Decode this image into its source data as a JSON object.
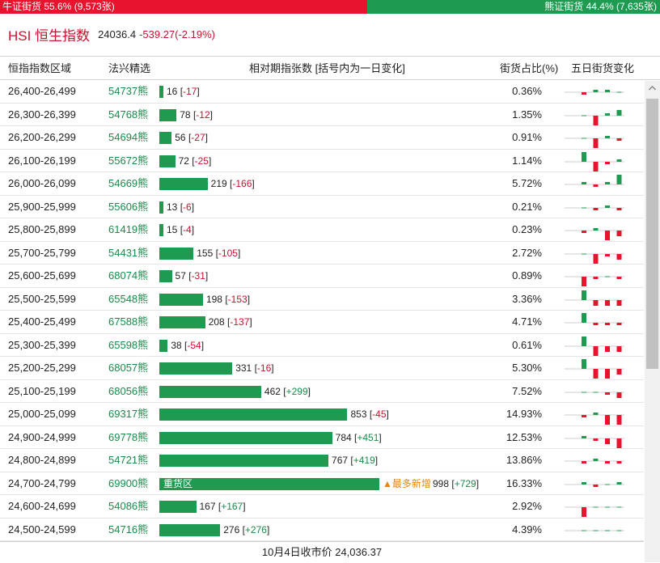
{
  "ratio_bar": {
    "bull_label": "牛证街货 55.6% (9,573张)",
    "bear_label": "熊证街货 44.4% (7,635张)",
    "bull_fraction": 0.556,
    "bear_fraction": 0.444,
    "bull_color": "#e8142e",
    "bear_color": "#1e9b50"
  },
  "index": {
    "name": "HSI 恒生指数",
    "value": "24036.4",
    "change": "-539.27(-2.19%)"
  },
  "columns": {
    "range": "恒指指数区域",
    "code": "法兴精选",
    "change": "相对期指张数 [括号内为一日变化]",
    "pct": "街货占比(%)",
    "five_day": "五日街货变化"
  },
  "rows": [
    {
      "range": "26,400-26,499",
      "code": "54737熊",
      "qty": 16,
      "qty_label": "16",
      "delta": "-17",
      "pct": "0.36%",
      "spark": [
        -1,
        1,
        1,
        0,
        -3
      ]
    },
    {
      "range": "26,300-26,399",
      "code": "54768熊",
      "qty": 78,
      "qty_label": "78",
      "delta": "-12",
      "pct": "1.35%",
      "spark": [
        0,
        -3,
        1,
        2,
        -3
      ]
    },
    {
      "range": "26,200-26,299",
      "code": "54694熊",
      "qty": 56,
      "qty_label": "56",
      "delta": "-27",
      "pct": "0.91%",
      "spark": [
        0,
        -3,
        1,
        -1,
        -3
      ]
    },
    {
      "range": "26,100-26,199",
      "code": "55672熊",
      "qty": 72,
      "qty_label": "72",
      "delta": "-25",
      "pct": "1.14%",
      "spark": [
        3,
        -3,
        -1,
        1,
        -3
      ]
    },
    {
      "range": "26,000-26,099",
      "code": "54669熊",
      "qty": 219,
      "qty_label": "219",
      "delta": "-166",
      "pct": "5.72%",
      "spark": [
        1,
        -1,
        1,
        3,
        -3
      ]
    },
    {
      "range": "25,900-25,999",
      "code": "55606熊",
      "qty": 13,
      "qty_label": "13",
      "delta": "-6",
      "pct": "0.21%",
      "spark": [
        0,
        -1,
        1,
        -1,
        -1
      ]
    },
    {
      "range": "25,800-25,899",
      "code": "61419熊",
      "qty": 15,
      "qty_label": "15",
      "delta": "-4",
      "pct": "0.23%",
      "spark": [
        -1,
        1,
        -3,
        -2,
        -2
      ]
    },
    {
      "range": "25,700-25,799",
      "code": "54431熊",
      "qty": 155,
      "qty_label": "155",
      "delta": "-105",
      "pct": "2.72%",
      "spark": [
        0,
        -3,
        -1,
        -2,
        -3
      ]
    },
    {
      "range": "25,600-25,699",
      "code": "68074熊",
      "qty": 57,
      "qty_label": "57",
      "delta": "-31",
      "pct": "0.89%",
      "spark": [
        -3,
        -1,
        0,
        -1,
        -2
      ]
    },
    {
      "range": "25,500-25,599",
      "code": "65548熊",
      "qty": 198,
      "qty_label": "198",
      "delta": "-153",
      "pct": "3.36%",
      "spark": [
        3,
        -2,
        -2,
        -2,
        -2
      ]
    },
    {
      "range": "25,400-25,499",
      "code": "67588熊",
      "qty": 208,
      "qty_label": "208",
      "delta": "-137",
      "pct": "4.71%",
      "spark": [
        3,
        -1,
        -1,
        -1,
        -1
      ]
    },
    {
      "range": "25,300-25,399",
      "code": "65598熊",
      "qty": 38,
      "qty_label": "38",
      "delta": "-54",
      "pct": "0.61%",
      "spark": [
        3,
        -3,
        -2,
        -2,
        -2
      ]
    },
    {
      "range": "25,200-25,299",
      "code": "68057熊",
      "qty": 331,
      "qty_label": "331",
      "delta": "-16",
      "pct": "5.30%",
      "spark": [
        3,
        -3,
        -3,
        -2,
        -3
      ]
    },
    {
      "range": "25,100-25,199",
      "code": "68056熊",
      "qty": 462,
      "qty_label": "462",
      "delta": "+299",
      "pct": "7.52%",
      "spark": [
        0,
        0,
        -1,
        -2,
        3
      ]
    },
    {
      "range": "25,000-25,099",
      "code": "69317熊",
      "qty": 853,
      "qty_label": "853",
      "delta": "-45",
      "pct": "14.93%",
      "spark": [
        -1,
        1,
        -3,
        -3,
        -3
      ]
    },
    {
      "range": "24,900-24,999",
      "code": "69778熊",
      "qty": 784,
      "qty_label": "784",
      "delta": "+451",
      "pct": "12.53%",
      "spark": [
        1,
        -1,
        -2,
        -3,
        3
      ]
    },
    {
      "range": "24,800-24,899",
      "code": "54721熊",
      "qty": 767,
      "qty_label": "767",
      "delta": "+419",
      "pct": "13.86%",
      "spark": [
        -1,
        1,
        -1,
        -1,
        3
      ]
    },
    {
      "range": "24,700-24,799",
      "code": "69900熊",
      "qty": 998,
      "qty_label": "998",
      "delta": "+729",
      "pct": "16.33%",
      "zone": "重货区",
      "most_new": "▲最多新增",
      "spark": [
        1,
        -1,
        0,
        1,
        3
      ]
    },
    {
      "range": "24,600-24,699",
      "code": "54086熊",
      "qty": 167,
      "qty_label": "167",
      "delta": "+167",
      "pct": "2.92%",
      "spark": [
        -3,
        0,
        0,
        0,
        1
      ]
    },
    {
      "range": "24,500-24,599",
      "code": "54716熊",
      "qty": 276,
      "qty_label": "276",
      "delta": "+276",
      "pct": "4.39%",
      "spark": [
        0,
        0,
        0,
        0,
        2
      ]
    }
  ],
  "footer": "10月4日收市价 24,036.37",
  "colors": {
    "red": "#e8142e",
    "green": "#1e9b50"
  }
}
